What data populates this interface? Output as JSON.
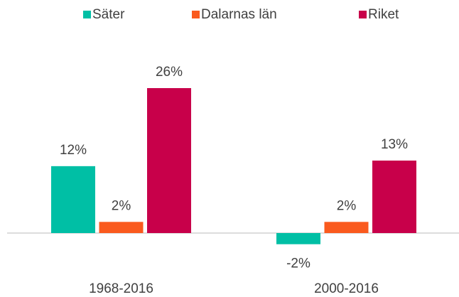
{
  "chart_data": {
    "type": "bar",
    "categories": [
      "1968-2016",
      "2000-2016"
    ],
    "series": [
      {
        "name": "Säter",
        "color": "#00bfa5",
        "values": [
          12,
          -2
        ],
        "value_labels": [
          "12%",
          "-2%"
        ]
      },
      {
        "name": "Dalarnas län",
        "color": "#fa5a1e",
        "values": [
          2,
          2
        ],
        "value_labels": [
          "2%",
          "2%"
        ]
      },
      {
        "name": "Riket",
        "color": "#c8004a",
        "values": [
          26,
          13
        ],
        "value_labels": [
          "26%",
          "13%"
        ]
      }
    ],
    "legend": "top"
  }
}
